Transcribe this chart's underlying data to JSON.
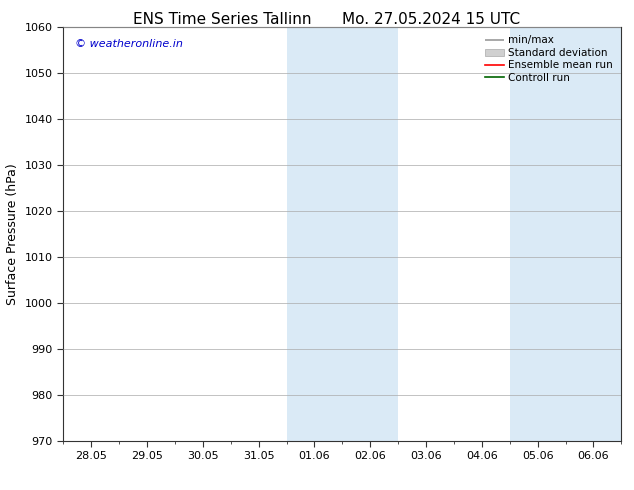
{
  "title_left": "ENS Time Series Tallinn",
  "title_right": "Mo. 27.05.2024 15 UTC",
  "ylabel": "Surface Pressure (hPa)",
  "ylim": [
    970,
    1060
  ],
  "yticks": [
    970,
    980,
    990,
    1000,
    1010,
    1020,
    1030,
    1040,
    1050,
    1060
  ],
  "xtick_labels": [
    "28.05",
    "29.05",
    "30.05",
    "31.05",
    "01.06",
    "02.06",
    "03.06",
    "04.06",
    "05.06",
    "06.06"
  ],
  "xtick_positions": [
    0,
    1,
    2,
    3,
    4,
    5,
    6,
    7,
    8,
    9
  ],
  "xlim": [
    -0.5,
    9.5
  ],
  "shaded_regions": [
    {
      "xmin": 3.5,
      "xmax": 5.5,
      "color": "#daeaf6"
    },
    {
      "xmin": 7.5,
      "xmax": 9.5,
      "color": "#daeaf6"
    }
  ],
  "legend_items": [
    {
      "label": "min/max",
      "color": "#999999",
      "style": "minmax"
    },
    {
      "label": "Standard deviation",
      "color": "#cccccc",
      "style": "fill"
    },
    {
      "label": "Ensemble mean run",
      "color": "#ff0000",
      "style": "line"
    },
    {
      "label": "Controll run",
      "color": "#006400",
      "style": "line"
    }
  ],
  "watermark_text": "© weatheronline.in",
  "watermark_color": "#0000cc",
  "background_color": "#ffffff",
  "grid_color": "#aaaaaa",
  "spine_color": "#333333",
  "title_fontsize": 11,
  "ylabel_fontsize": 9,
  "tick_fontsize": 8,
  "legend_fontsize": 7.5,
  "watermark_fontsize": 8
}
